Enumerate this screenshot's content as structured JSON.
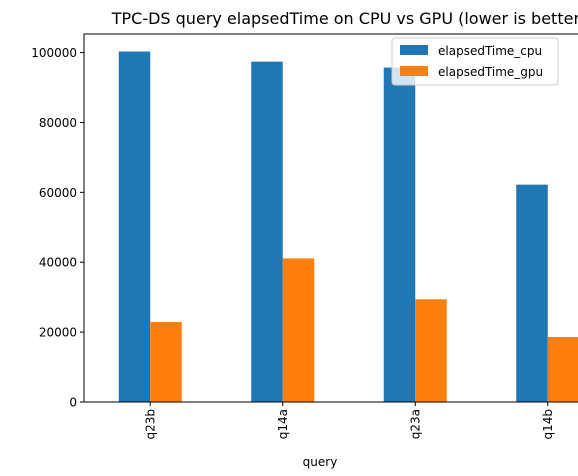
{
  "chart_data": {
    "type": "bar",
    "title": "TPC-DS query elapsedTime on CPU vs GPU (lower is better)",
    "xlabel": "query",
    "ylabel": "",
    "categories": [
      "q23b",
      "q14a",
      "q23a",
      "q14b"
    ],
    "series": [
      {
        "name": "elapsedTime_cpu",
        "values": [
          100300,
          97400,
          95700,
          62200
        ],
        "color": "#1f77b4"
      },
      {
        "name": "elapsedTime_gpu",
        "values": [
          22900,
          41100,
          29400,
          18600
        ],
        "color": "#ff7f0e"
      }
    ],
    "ylim": [
      0,
      105315
    ],
    "yticks": [
      0,
      20000,
      40000,
      60000,
      80000,
      100000
    ],
    "ytick_labels": [
      "0",
      "20000",
      "40000",
      "60000",
      "80000",
      "100000"
    ],
    "grid": false,
    "legend_position": "top-right"
  }
}
